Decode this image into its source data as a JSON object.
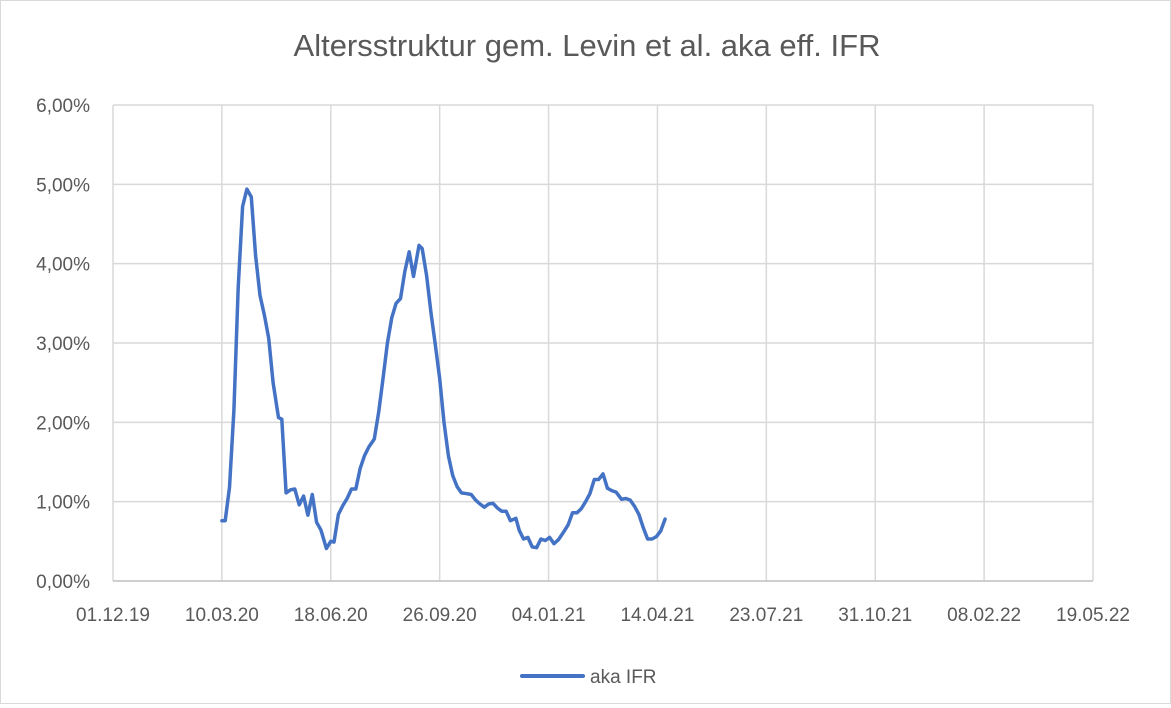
{
  "chart_data": {
    "type": "line",
    "title": "Altersstruktur gem. Levin et al. aka eff. IFR",
    "xlabel": "",
    "ylabel": "",
    "x_axis": {
      "type": "date",
      "range": [
        "2019-12-01",
        "2022-05-19"
      ],
      "ticks": [
        "2019-12-01",
        "2020-03-10",
        "2020-06-18",
        "2020-09-26",
        "2021-01-04",
        "2021-04-14",
        "2021-07-23",
        "2021-10-31",
        "2022-02-08",
        "2022-05-19"
      ],
      "tick_labels": [
        "01.12.19",
        "10.03.20",
        "18.06.20",
        "26.09.20",
        "04.01.21",
        "14.04.21",
        "23.07.21",
        "31.10.21",
        "08.02.22",
        "19.05.22"
      ]
    },
    "y_axis": {
      "range": [
        0,
        0.06
      ],
      "ticks": [
        0,
        0.01,
        0.02,
        0.03,
        0.04,
        0.05,
        0.06
      ],
      "tick_labels": [
        "0,00%",
        "1,00%",
        "2,00%",
        "3,00%",
        "4,00%",
        "5,00%",
        "6,00%"
      ]
    },
    "grid": true,
    "legend": "bottom",
    "series": [
      {
        "name": "aka IFR",
        "color": "#4472c4",
        "points": [
          [
            "2020-03-10",
            0.0076
          ],
          [
            "2020-03-13",
            0.0076
          ],
          [
            "2020-03-17",
            0.0118
          ],
          [
            "2020-03-21",
            0.0215
          ],
          [
            "2020-03-25",
            0.037
          ],
          [
            "2020-03-29",
            0.0472
          ],
          [
            "2020-04-02",
            0.0494
          ],
          [
            "2020-04-06",
            0.0484
          ],
          [
            "2020-04-10",
            0.041
          ],
          [
            "2020-04-14",
            0.036
          ],
          [
            "2020-04-18",
            0.0335
          ],
          [
            "2020-04-22",
            0.0306
          ],
          [
            "2020-04-26",
            0.025
          ],
          [
            "2020-05-01",
            0.0206
          ],
          [
            "2020-05-04",
            0.0204
          ],
          [
            "2020-05-08",
            0.0111
          ],
          [
            "2020-05-12",
            0.0115
          ],
          [
            "2020-05-16",
            0.0116
          ],
          [
            "2020-05-20",
            0.0096
          ],
          [
            "2020-05-24",
            0.0107
          ],
          [
            "2020-05-28",
            0.0083
          ],
          [
            "2020-06-01",
            0.0109
          ],
          [
            "2020-06-05",
            0.0074
          ],
          [
            "2020-06-09",
            0.0064
          ],
          [
            "2020-06-14",
            0.0041
          ],
          [
            "2020-06-18",
            0.005
          ],
          [
            "2020-06-21",
            0.0049
          ],
          [
            "2020-06-25",
            0.0084
          ],
          [
            "2020-06-29",
            0.0095
          ],
          [
            "2020-07-03",
            0.0104
          ],
          [
            "2020-07-07",
            0.0116
          ],
          [
            "2020-07-11",
            0.0116
          ],
          [
            "2020-07-15",
            0.0142
          ],
          [
            "2020-07-19",
            0.0158
          ],
          [
            "2020-07-23",
            0.0169
          ],
          [
            "2020-07-28",
            0.0179
          ],
          [
            "2020-08-01",
            0.0213
          ],
          [
            "2020-08-05",
            0.0255
          ],
          [
            "2020-08-09",
            0.03
          ],
          [
            "2020-08-13",
            0.0332
          ],
          [
            "2020-08-17",
            0.035
          ],
          [
            "2020-08-21",
            0.0356
          ],
          [
            "2020-08-25",
            0.039
          ],
          [
            "2020-08-29",
            0.0415
          ],
          [
            "2020-09-02",
            0.0384
          ],
          [
            "2020-09-07",
            0.0423
          ],
          [
            "2020-09-10",
            0.0419
          ],
          [
            "2020-09-14",
            0.0385
          ],
          [
            "2020-09-18",
            0.0338
          ],
          [
            "2020-09-22",
            0.0298
          ],
          [
            "2020-09-26",
            0.0255
          ],
          [
            "2020-09-30",
            0.02
          ],
          [
            "2020-10-04",
            0.0158
          ],
          [
            "2020-10-08",
            0.0133
          ],
          [
            "2020-10-12",
            0.0119
          ],
          [
            "2020-10-16",
            0.0111
          ],
          [
            "2020-10-21",
            0.011
          ],
          [
            "2020-10-25",
            0.0109
          ],
          [
            "2020-10-29",
            0.0102
          ],
          [
            "2020-11-02",
            0.0097
          ],
          [
            "2020-11-06",
            0.0093
          ],
          [
            "2020-11-10",
            0.0097
          ],
          [
            "2020-11-14",
            0.0098
          ],
          [
            "2020-11-18",
            0.0092
          ],
          [
            "2020-11-22",
            0.0088
          ],
          [
            "2020-11-26",
            0.0088
          ],
          [
            "2020-11-30",
            0.0076
          ],
          [
            "2020-12-05",
            0.0079
          ],
          [
            "2020-12-08",
            0.0064
          ],
          [
            "2020-12-12",
            0.0053
          ],
          [
            "2020-12-16",
            0.0055
          ],
          [
            "2020-12-20",
            0.0043
          ],
          [
            "2020-12-24",
            0.0042
          ],
          [
            "2020-12-28",
            0.0053
          ],
          [
            "2021-01-01",
            0.0051
          ],
          [
            "2021-01-05",
            0.0055
          ],
          [
            "2021-01-09",
            0.0047
          ],
          [
            "2021-01-13",
            0.0052
          ],
          [
            "2021-01-18",
            0.0062
          ],
          [
            "2021-01-22",
            0.0071
          ],
          [
            "2021-01-26",
            0.0086
          ],
          [
            "2021-01-30",
            0.0086
          ],
          [
            "2021-02-03",
            0.0091
          ],
          [
            "2021-02-07",
            0.01
          ],
          [
            "2021-02-11",
            0.011
          ],
          [
            "2021-02-15",
            0.0128
          ],
          [
            "2021-02-19",
            0.0128
          ],
          [
            "2021-02-23",
            0.0135
          ],
          [
            "2021-02-27",
            0.0117
          ],
          [
            "2021-03-03",
            0.0114
          ],
          [
            "2021-03-07",
            0.0112
          ],
          [
            "2021-03-12",
            0.0103
          ],
          [
            "2021-03-16",
            0.0104
          ],
          [
            "2021-03-20",
            0.0102
          ],
          [
            "2021-03-24",
            0.0094
          ],
          [
            "2021-03-28",
            0.0084
          ],
          [
            "2021-04-01",
            0.0067
          ],
          [
            "2021-04-05",
            0.0053
          ],
          [
            "2021-04-09",
            0.0053
          ],
          [
            "2021-04-13",
            0.0056
          ],
          [
            "2021-04-17",
            0.0063
          ],
          [
            "2021-04-21",
            0.0078
          ]
        ]
      }
    ]
  }
}
